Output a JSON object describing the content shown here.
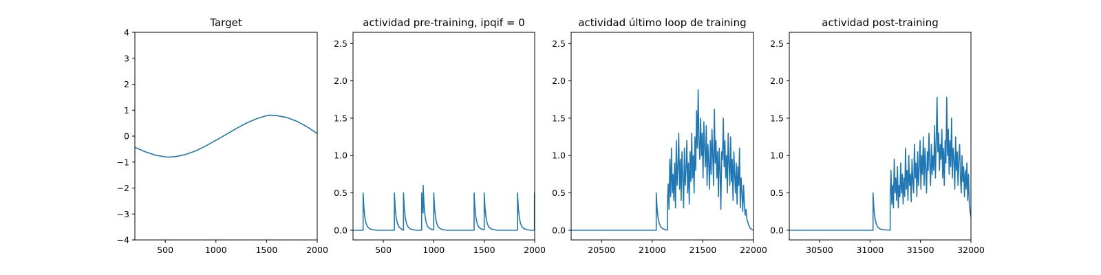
{
  "chart_data": [
    {
      "type": "line",
      "title": "Target",
      "xlabel": "",
      "ylabel": "",
      "xlim": [
        200,
        2000
      ],
      "ylim": [
        -4,
        4
      ],
      "xticks": [
        500,
        1000,
        1500,
        2000
      ],
      "yticks": [
        -4,
        -3,
        -2,
        -1,
        0,
        1,
        2,
        3,
        4
      ],
      "xtick_labels": [
        "500",
        "1000",
        "1500",
        "2000"
      ],
      "ytick_labels": [
        "−4",
        "−3",
        "−2",
        "−1",
        "0",
        "1",
        "2",
        "3",
        "4"
      ],
      "grid": false,
      "series": [
        {
          "color": "#1f77b4",
          "x": [
            200,
            300,
            400,
            500,
            530,
            600,
            700,
            800,
            900,
            1000,
            1100,
            1200,
            1300,
            1400,
            1500,
            1530,
            1600,
            1700,
            1800,
            1900,
            2000
          ],
          "y": [
            -0.43,
            -0.6,
            -0.73,
            -0.8,
            -0.81,
            -0.79,
            -0.71,
            -0.57,
            -0.38,
            -0.16,
            0.06,
            0.29,
            0.5,
            0.67,
            0.79,
            0.81,
            0.79,
            0.72,
            0.57,
            0.36,
            0.1
          ]
        }
      ]
    },
    {
      "type": "line",
      "title": "actividad pre-training, ipqif = 0",
      "xlabel": "",
      "ylabel": "",
      "xlim": [
        200,
        2000
      ],
      "ylim": [
        -0.13,
        2.65
      ],
      "xticks": [
        500,
        1000,
        1500,
        2000
      ],
      "yticks": [
        0.0,
        0.5,
        1.0,
        1.5,
        2.0,
        2.5
      ],
      "xtick_labels": [
        "500",
        "1000",
        "1500",
        "2000"
      ],
      "ytick_labels": [
        "0.0",
        "0.5",
        "1.0",
        "1.5",
        "2.0",
        "2.5"
      ],
      "grid": false,
      "series": [
        {
          "color": "#1f77b4",
          "x": [
            200,
            300,
            300,
            308,
            318,
            330,
            345,
            365,
            392,
            430,
            610,
            610,
            618,
            628,
            640,
            655,
            675,
            700,
            700,
            708,
            718,
            730,
            745,
            765,
            792,
            830,
            880,
            880,
            888,
            895,
            895,
            903,
            913,
            925,
            940,
            960,
            987,
            1000,
            1000,
            1008,
            1018,
            1030,
            1045,
            1065,
            1092,
            1130,
            1400,
            1400,
            1408,
            1418,
            1430,
            1445,
            1465,
            1492,
            1500,
            1500,
            1508,
            1518,
            1530,
            1545,
            1565,
            1592,
            1630,
            1830,
            1830,
            1838,
            1848,
            1860,
            1875,
            1895,
            1922,
            1960,
            1998,
            1998,
            2000
          ],
          "y": [
            0,
            0,
            0.5,
            0.3,
            0.17,
            0.09,
            0.045,
            0.02,
            0.008,
            0.0,
            0,
            0.5,
            0.3,
            0.17,
            0.09,
            0.045,
            0.02,
            0.0,
            0.5,
            0.3,
            0.17,
            0.09,
            0.045,
            0.02,
            0.008,
            0.0,
            0,
            0.5,
            0.3,
            0.23,
            0.6,
            0.36,
            0.2,
            0.1,
            0.05,
            0.022,
            0.008,
            0.005,
            0.5,
            0.3,
            0.17,
            0.09,
            0.045,
            0.02,
            0.008,
            0.0,
            0,
            0.5,
            0.3,
            0.17,
            0.09,
            0.045,
            0.02,
            0.008,
            0.005,
            0.5,
            0.3,
            0.17,
            0.09,
            0.045,
            0.02,
            0.008,
            0.0,
            0,
            0.5,
            0.3,
            0.17,
            0.09,
            0.045,
            0.02,
            0.008,
            0.0,
            0,
            0.5,
            0.48
          ]
        }
      ]
    },
    {
      "type": "line",
      "title": "actividad último loop de training",
      "xlabel": "",
      "ylabel": "",
      "xlim": [
        20200,
        22000
      ],
      "ylim": [
        -0.13,
        2.65
      ],
      "xticks": [
        20500,
        21000,
        21500,
        22000
      ],
      "yticks": [
        0.0,
        0.5,
        1.0,
        1.5,
        2.0,
        2.5
      ],
      "xtick_labels": [
        "20500",
        "21000",
        "21500",
        "22000"
      ],
      "ytick_labels": [
        "0.0",
        "0.5",
        "1.0",
        "1.5",
        "2.0",
        "2.5"
      ],
      "grid": false,
      "series": [
        {
          "color": "#1f77b4",
          "x": [
            20200,
            21040,
            21040,
            21048,
            21058,
            21070,
            21085,
            21105,
            21130,
            21150,
            21150,
            21158,
            21166,
            21174,
            21182,
            21190,
            21198,
            21206,
            21214,
            21222,
            21230,
            21238,
            21246,
            21254,
            21262,
            21270,
            21278,
            21286,
            21294,
            21302,
            21310,
            21318,
            21326,
            21334,
            21342,
            21350,
            21358,
            21366,
            21374,
            21382,
            21390,
            21398,
            21406,
            21414,
            21422,
            21430,
            21438,
            21446,
            21454,
            21462,
            21470,
            21478,
            21486,
            21494,
            21502,
            21510,
            21518,
            21526,
            21534,
            21542,
            21550,
            21558,
            21566,
            21574,
            21582,
            21590,
            21598,
            21606,
            21614,
            21622,
            21630,
            21638,
            21646,
            21654,
            21662,
            21670,
            21678,
            21686,
            21694,
            21702,
            21710,
            21718,
            21726,
            21734,
            21742,
            21750,
            21758,
            21766,
            21774,
            21782,
            21790,
            21798,
            21806,
            21814,
            21822,
            21830,
            21838,
            21846,
            21854,
            21862,
            21870,
            21878,
            21886,
            21894,
            21902,
            21910,
            21918,
            21926,
            21934,
            21942,
            21950,
            21958,
            21966,
            21974,
            21982,
            21990,
            22000
          ],
          "y": [
            0,
            0,
            0.5,
            0.3,
            0.17,
            0.09,
            0.045,
            0.02,
            0.008,
            0.0,
            0.35,
            0.62,
            0.28,
            0.95,
            0.45,
            1.1,
            0.5,
            0.75,
            0.4,
            0.9,
            0.3,
            1.2,
            0.6,
            0.85,
            1.3,
            0.55,
            0.95,
            0.4,
            1.05,
            0.7,
            0.3,
            1.1,
            0.6,
            0.8,
            1.2,
            0.5,
            0.9,
            0.35,
            1.05,
            0.65,
            1.3,
            0.7,
            1.0,
            0.5,
            1.25,
            0.8,
            1.6,
            1.1,
            1.88,
            1.2,
            0.95,
            1.5,
            1.0,
            1.3,
            0.7,
            1.45,
            1.1,
            0.85,
            1.4,
            0.6,
            1.15,
            0.9,
            0.55,
            1.2,
            0.75,
            1.35,
            1.0,
            0.6,
            1.62,
            0.9,
            1.2,
            0.7,
            1.05,
            0.45,
            1.1,
            0.8,
            0.28,
            1.05,
            0.95,
            1.5,
            0.85,
            1.2,
            0.7,
            1.0,
            0.5,
            1.3,
            0.9,
            0.6,
            1.25,
            0.65,
            0.95,
            0.4,
            1.05,
            0.75,
            0.5,
            0.9,
            0.35,
            0.85,
            0.6,
            1.1,
            0.3,
            0.7,
            0.5,
            0.25,
            0.6,
            0.35,
            0.2,
            0.28,
            0.15,
            0.12,
            0.08,
            0.05,
            0.03,
            0.02,
            0.01,
            0.005,
            0.003
          ]
        }
      ]
    },
    {
      "type": "line",
      "title": "actividad post-training",
      "xlabel": "",
      "ylabel": "",
      "xlim": [
        30200,
        32000
      ],
      "ylim": [
        -0.13,
        2.65
      ],
      "xticks": [
        30500,
        31000,
        31500,
        32000
      ],
      "yticks": [
        0.0,
        0.5,
        1.0,
        1.5,
        2.0,
        2.5
      ],
      "xtick_labels": [
        "30500",
        "31000",
        "31500",
        "32000"
      ],
      "ytick_labels": [
        "0.0",
        "0.5",
        "1.0",
        "1.5",
        "2.0",
        "2.5"
      ],
      "grid": false,
      "series": [
        {
          "color": "#1f77b4",
          "x": [
            30200,
            31030,
            31030,
            31038,
            31048,
            31060,
            31075,
            31095,
            31120,
            31200,
            31200,
            31208,
            31216,
            31224,
            31232,
            31240,
            31248,
            31256,
            31264,
            31272,
            31280,
            31288,
            31296,
            31304,
            31312,
            31320,
            31328,
            31336,
            31344,
            31352,
            31360,
            31368,
            31376,
            31384,
            31392,
            31400,
            31408,
            31416,
            31424,
            31432,
            31440,
            31448,
            31456,
            31464,
            31472,
            31480,
            31488,
            31496,
            31504,
            31512,
            31520,
            31528,
            31536,
            31544,
            31552,
            31560,
            31568,
            31576,
            31584,
            31592,
            31600,
            31608,
            31616,
            31624,
            31632,
            31640,
            31648,
            31656,
            31664,
            31672,
            31680,
            31688,
            31696,
            31704,
            31712,
            31720,
            31728,
            31736,
            31744,
            31752,
            31760,
            31768,
            31776,
            31784,
            31792,
            31800,
            31808,
            31816,
            31824,
            31832,
            31840,
            31848,
            31856,
            31864,
            31872,
            31880,
            31888,
            31896,
            31904,
            31912,
            31920,
            31928,
            31936,
            31944,
            31952,
            31960,
            31968,
            31976,
            31984,
            31992,
            32000
          ],
          "y": [
            0,
            0,
            0.5,
            0.3,
            0.17,
            0.09,
            0.045,
            0.02,
            0.008,
            0.0,
            0.45,
            0.8,
            0.35,
            0.6,
            0.3,
            0.95,
            0.5,
            0.7,
            0.4,
            0.85,
            0.3,
            0.6,
            0.45,
            0.9,
            0.5,
            0.75,
            0.35,
            0.7,
            0.45,
            1.1,
            0.55,
            0.8,
            0.4,
            1.0,
            0.6,
            0.75,
            0.38,
            0.95,
            0.65,
            0.5,
            1.15,
            0.7,
            0.9,
            0.45,
            1.05,
            0.6,
            0.85,
            1.2,
            0.55,
            1.0,
            0.75,
            1.25,
            0.6,
            1.1,
            0.85,
            0.5,
            1.05,
            0.8,
            1.3,
            0.9,
            0.6,
            1.15,
            0.75,
            1.0,
            0.8,
            1.4,
            0.7,
            1.2,
            1.78,
            1.05,
            1.3,
            0.8,
            1.15,
            0.95,
            1.35,
            0.7,
            1.1,
            0.6,
            1.2,
            0.9,
            1.78,
            1.0,
            1.35,
            0.75,
            1.2,
            0.85,
            1.5,
            0.7,
            1.1,
            0.95,
            0.55,
            1.25,
            0.8,
            1.05,
            0.6,
            0.95,
            1.15,
            0.7,
            0.5,
            1.0,
            0.65,
            0.85,
            0.45,
            0.8,
            0.55,
            0.9,
            0.4,
            0.75,
            0.35,
            0.25,
            0.18
          ]
        }
      ]
    }
  ]
}
